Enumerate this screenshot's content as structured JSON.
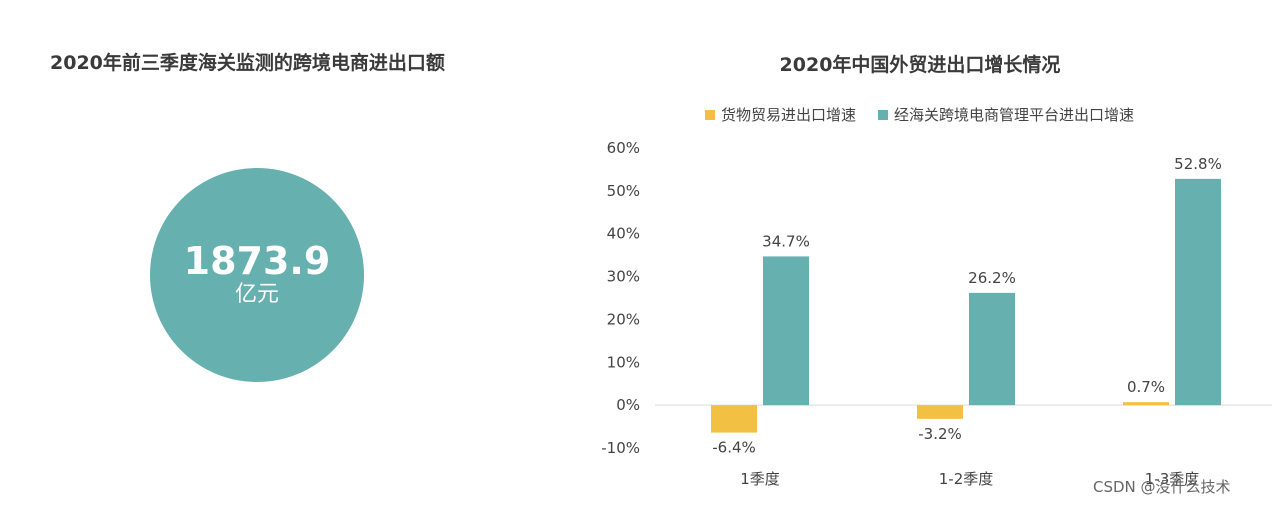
{
  "left_panel": {
    "title": "2020年前三季度海关监测的跨境电商进出口额",
    "value": "1873.9",
    "unit": "亿元",
    "circle_color": "#66b0b0"
  },
  "watermark": "CSDN @没什么技术",
  "chart_data": {
    "type": "bar",
    "title": "2020年中国外贸进出口增长情况",
    "categories": [
      "1季度",
      "1-2季度",
      "1-3季度"
    ],
    "series": [
      {
        "name": "货物贸易进出口增速",
        "color": "#f2c043",
        "values": [
          -6.4,
          -3.2,
          0.7
        ]
      },
      {
        "name": "经海关跨境电商管理平台进出口增速",
        "color": "#66b0b0",
        "values": [
          34.7,
          26.2,
          52.8
        ]
      }
    ],
    "ylim": [
      -10,
      60
    ],
    "yticks": [
      -10,
      0,
      10,
      20,
      30,
      40,
      50,
      60
    ],
    "ytick_labels": [
      "-10%",
      "0%",
      "10%",
      "20%",
      "30%",
      "40%",
      "50%",
      "60%"
    ],
    "data_labels": [
      [
        "-6.4%",
        "-3.2%",
        "0.7%"
      ],
      [
        "34.7%",
        "26.2%",
        "52.8%"
      ]
    ],
    "legend_position": "top",
    "grid": false
  }
}
